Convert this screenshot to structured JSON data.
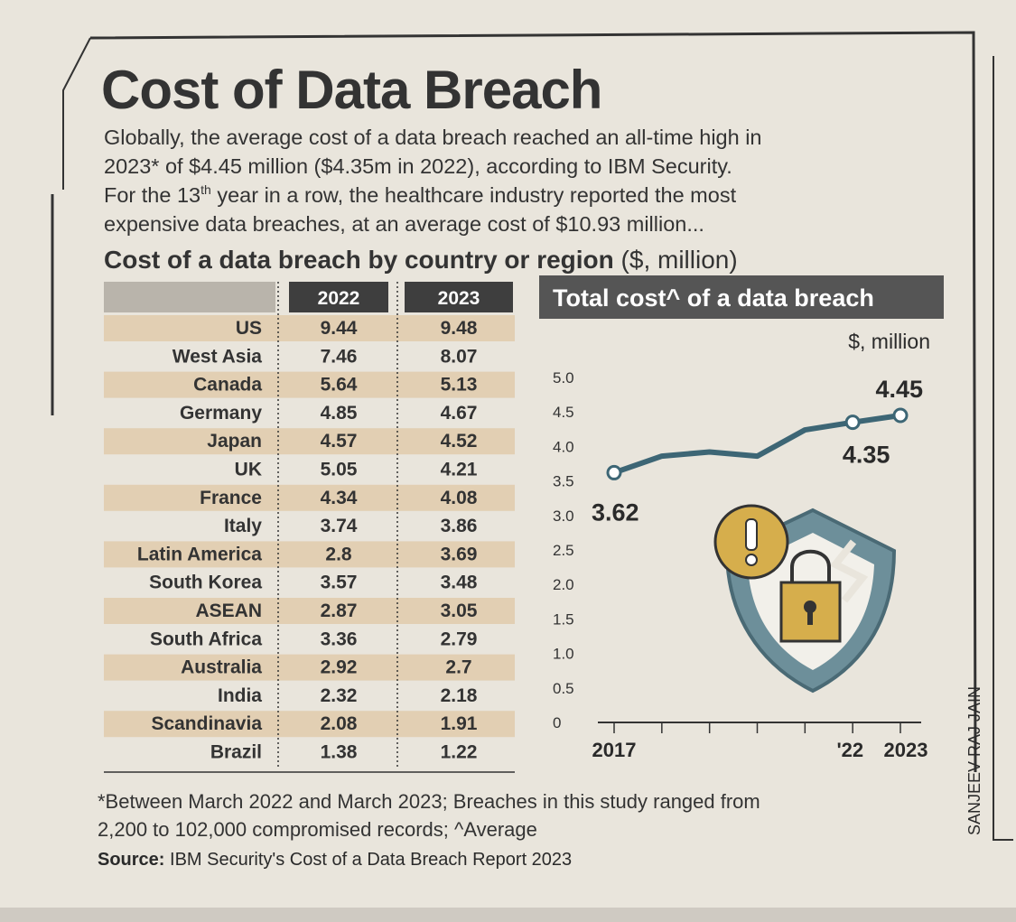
{
  "header": {
    "title": "Cost of Data Breach",
    "intro": [
      [
        "Globally, the average cost of a data breach reached an all-time high in"
      ],
      [
        "2023* of $4.45 million ($4.35m in 2022), according to IBM Security."
      ],
      [
        "For the 13",
        "th",
        " year in a row, the healthcare industry reported the most"
      ],
      [
        "expensive data breaches, at an average cost of $10.93 million..."
      ]
    ],
    "subtitle": "Cost of a data breach by country or region",
    "subtitle_unit": "($, million)"
  },
  "table": {
    "columns": [
      "2022",
      "2023"
    ],
    "rows": [
      [
        "US",
        "9.44",
        "9.48"
      ],
      [
        "West Asia",
        "7.46",
        "8.07"
      ],
      [
        "Canada",
        "5.64",
        "5.13"
      ],
      [
        "Germany",
        "4.85",
        "4.67"
      ],
      [
        "Japan",
        "4.57",
        "4.52"
      ],
      [
        "UK",
        "5.05",
        "4.21"
      ],
      [
        "France",
        "4.34",
        "4.08"
      ],
      [
        "Italy",
        "3.74",
        "3.86"
      ],
      [
        "Latin America",
        "2.8",
        "3.69"
      ],
      [
        "South Korea",
        "3.57",
        "3.48"
      ],
      [
        "ASEAN",
        "2.87",
        "3.05"
      ],
      [
        "South Africa",
        "3.36",
        "2.79"
      ],
      [
        "Australia",
        "2.92",
        "2.7"
      ],
      [
        "India",
        "2.32",
        "2.18"
      ],
      [
        "Scandinavia",
        "2.08",
        "1.91"
      ],
      [
        "Brazil",
        "1.38",
        "1.22"
      ]
    ]
  },
  "chart_data": {
    "type": "line",
    "title": "Total cost^ of a data breach",
    "y_label": "$, million",
    "categories": [
      "2017",
      null,
      null,
      null,
      null,
      "'22",
      "2023"
    ],
    "values": [
      3.62,
      3.86,
      3.92,
      3.86,
      4.24,
      4.35,
      4.45
    ],
    "value_labels": [
      "3.62",
      null,
      null,
      null,
      null,
      "4.35",
      "4.45"
    ],
    "color": "#3d6675",
    "ylim": [
      0,
      5
    ],
    "yticks": [
      0,
      0.5,
      {
        "value": 1,
        "label": "1.0"
      },
      1.5,
      {
        "value": 2,
        "label": "2.0"
      },
      2.5,
      {
        "value": 3,
        "label": "3.0"
      },
      3.5,
      {
        "value": 4,
        "label": "4.0"
      },
      4.5,
      {
        "value": 5,
        "label": "5.0"
      }
    ],
    "grid": false
  },
  "footer": {
    "footnote": [
      "*Between March 2022 and March 2023; Breaches in this study ranged from",
      "2,200 to 102,000 compromised records; ^Average"
    ],
    "source_label": "Source:",
    "source": "IBM Security's Cost of a Data Breach Report 2023",
    "credit": "SANJEEV RAJ JAIN"
  }
}
